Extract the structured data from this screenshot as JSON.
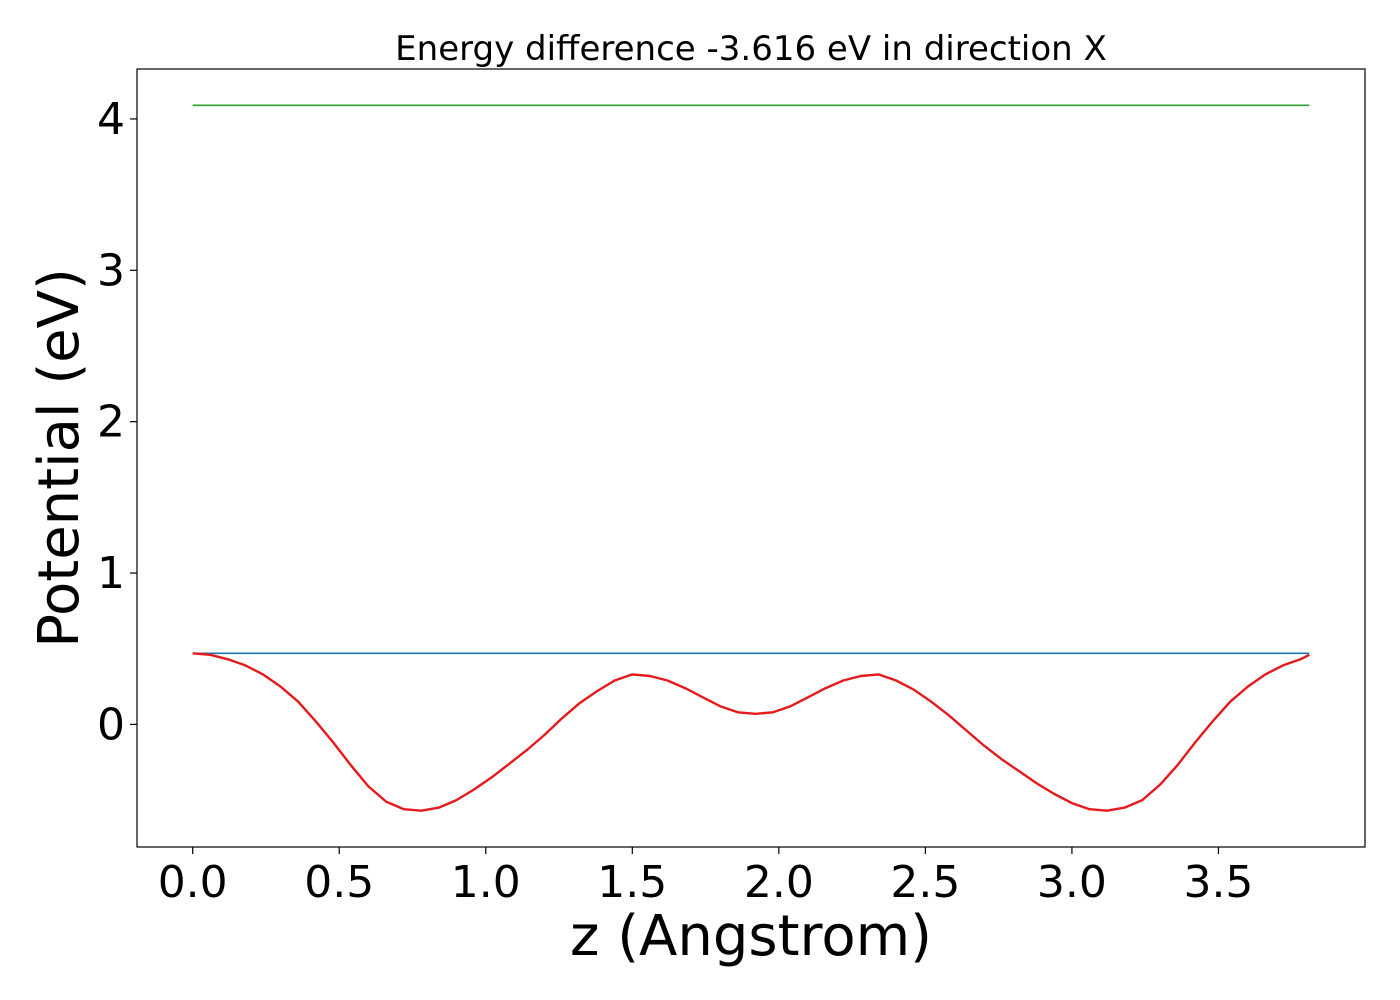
{
  "chart_data": {
    "type": "line",
    "title": "Energy difference -3.616 eV in direction X",
    "xlabel": "z (Angstrom)",
    "ylabel": "Potential (eV)",
    "xlim": [
      -0.19,
      4.0
    ],
    "ylim": [
      -0.81,
      4.33
    ],
    "xticks": [
      0.0,
      0.5,
      1.0,
      1.5,
      2.0,
      2.5,
      3.0,
      3.5
    ],
    "xtick_labels": [
      "0.0",
      "0.5",
      "1.0",
      "1.5",
      "2.0",
      "2.5",
      "3.0",
      "3.5"
    ],
    "yticks": [
      0,
      1,
      2,
      3,
      4
    ],
    "ytick_labels": [
      "0",
      "1",
      "2",
      "3",
      "4"
    ],
    "grid": false,
    "colors": {
      "potential": "#e41a1c",
      "average": "#1f77b4",
      "vacuum": "#2ca02c"
    },
    "series": [
      {
        "key": "potential",
        "x": [
          0.0,
          0.06,
          0.12,
          0.18,
          0.24,
          0.3,
          0.36,
          0.42,
          0.48,
          0.54,
          0.6,
          0.66,
          0.72,
          0.78,
          0.84,
          0.9,
          0.96,
          1.02,
          1.08,
          1.14,
          1.2,
          1.26,
          1.32,
          1.38,
          1.44,
          1.5,
          1.56,
          1.62,
          1.68,
          1.74,
          1.8,
          1.86,
          1.92,
          1.98,
          2.04,
          2.1,
          2.16,
          2.22,
          2.28,
          2.34,
          2.4,
          2.46,
          2.52,
          2.58,
          2.64,
          2.7,
          2.76,
          2.82,
          2.88,
          2.94,
          3.0,
          3.06,
          3.12,
          3.18,
          3.24,
          3.3,
          3.36,
          3.42,
          3.48,
          3.54,
          3.6,
          3.66,
          3.72,
          3.78,
          3.81
        ],
        "y": [
          0.47,
          0.46,
          0.43,
          0.39,
          0.33,
          0.25,
          0.15,
          0.02,
          -0.12,
          -0.27,
          -0.41,
          -0.51,
          -0.56,
          -0.57,
          -0.55,
          -0.5,
          -0.43,
          -0.35,
          -0.26,
          -0.17,
          -0.07,
          0.04,
          0.14,
          0.22,
          0.29,
          0.33,
          0.32,
          0.29,
          0.24,
          0.18,
          0.12,
          0.08,
          0.07,
          0.08,
          0.12,
          0.18,
          0.24,
          0.29,
          0.32,
          0.33,
          0.29,
          0.23,
          0.15,
          0.06,
          -0.04,
          -0.14,
          -0.23,
          -0.31,
          -0.39,
          -0.46,
          -0.52,
          -0.56,
          -0.57,
          -0.55,
          -0.5,
          -0.4,
          -0.27,
          -0.12,
          0.02,
          0.15,
          0.25,
          0.33,
          0.39,
          0.43,
          0.46
        ]
      },
      {
        "key": "average",
        "x": [
          0.0,
          3.81
        ],
        "y": [
          0.47,
          0.47
        ]
      },
      {
        "key": "vacuum",
        "x": [
          0.0,
          3.81
        ],
        "y": [
          4.09,
          4.09
        ]
      }
    ]
  }
}
